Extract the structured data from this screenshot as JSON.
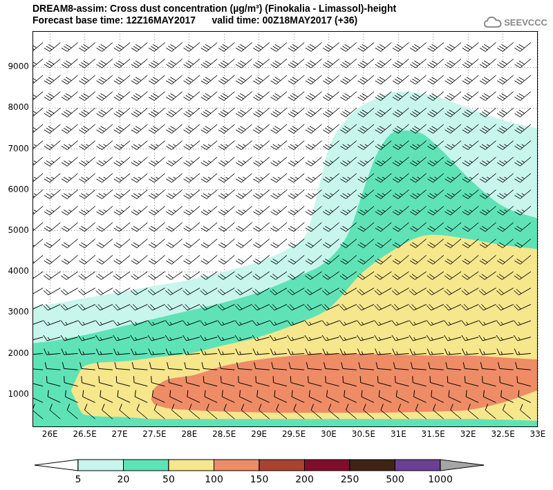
{
  "chart_data": {
    "type": "filled_contour",
    "title": "DREAM8-assim: Cross dust concentration (µg/m³) (Finokalia - Limassol)-height",
    "subtitle": "Forecast base time: 12Z16MAY2017      valid time: 00Z18MAY2017 (+36)",
    "logo": "SEEVCCC",
    "xlim": [
      25.75,
      33
    ],
    "xticks": [
      {
        "value": 26,
        "label": "26E"
      },
      {
        "value": 26.5,
        "label": "26.5E"
      },
      {
        "value": 27,
        "label": "27E"
      },
      {
        "value": 27.5,
        "label": "27.5E"
      },
      {
        "value": 28,
        "label": "28E"
      },
      {
        "value": 28.5,
        "label": "28.5E"
      },
      {
        "value": 29,
        "label": "29E"
      },
      {
        "value": 29.5,
        "label": "29.5E"
      },
      {
        "value": 30,
        "label": "30E"
      },
      {
        "value": 30.5,
        "label": "30.5E"
      },
      {
        "value": 31,
        "label": "31E"
      },
      {
        "value": 31.5,
        "label": "31.5E"
      },
      {
        "value": 32,
        "label": "32E"
      },
      {
        "value": 32.5,
        "label": "32.5E"
      },
      {
        "value": 33,
        "label": "33E"
      }
    ],
    "ylim": [
      200,
      9880
    ],
    "yticks": [
      1000,
      2000,
      3000,
      4000,
      5000,
      6000,
      7000,
      8000,
      9000
    ],
    "grid": true,
    "colorbar": {
      "levels": [
        5,
        20,
        50,
        100,
        150,
        200,
        250,
        500,
        1000
      ],
      "colors": [
        "#ffffff",
        "#c8f5ec",
        "#5fe3b6",
        "#f6e68c",
        "#ee8c66",
        "#a9432f",
        "#800d2d",
        "#3f2314",
        "#6b3f94",
        "#a6a6a6"
      ]
    },
    "contours": [
      {
        "level": 5,
        "x": [
          25.75,
          26,
          26.5,
          27,
          27.5,
          28,
          28.5,
          29,
          29.5,
          29.7,
          29.85,
          30,
          30.3,
          30.7,
          31,
          31.5,
          32,
          32.5,
          33
        ],
        "lower": [
          200,
          200,
          200,
          200,
          200,
          200,
          200,
          200,
          200,
          200,
          200,
          200,
          200,
          200,
          200,
          200,
          200,
          200,
          200
        ],
        "upper": [
          3150,
          3200,
          3350,
          3500,
          3650,
          3800,
          4000,
          4250,
          4650,
          5000,
          6000,
          7000,
          7800,
          8250,
          8400,
          8300,
          8000,
          7700,
          7500
        ]
      },
      {
        "level": 20,
        "x": [
          25.75,
          26,
          26.5,
          27,
          27.5,
          28,
          28.5,
          29,
          29.5,
          30,
          30.3,
          30.5,
          30.7,
          31,
          31.3,
          31.6,
          32,
          32.5,
          33
        ],
        "lower": [
          200,
          200,
          200,
          200,
          200,
          200,
          200,
          200,
          200,
          200,
          200,
          200,
          200,
          200,
          200,
          200,
          200,
          200,
          200
        ],
        "upper": [
          2250,
          2300,
          2450,
          2650,
          2850,
          3050,
          3250,
          3500,
          3850,
          4300,
          5000,
          6000,
          6900,
          7450,
          7400,
          7000,
          6300,
          5600,
          5300
        ]
      },
      {
        "level": 50,
        "x": [
          26.3,
          26.5,
          27,
          27.5,
          28,
          28.5,
          29,
          29.5,
          30,
          30.5,
          31,
          31.3,
          31.5,
          32,
          32.5,
          33
        ],
        "lower": [
          1100,
          500,
          450,
          400,
          400,
          400,
          400,
          400,
          400,
          400,
          400,
          400,
          400,
          400,
          380,
          350
        ],
        "upper": [
          1100,
          1700,
          1800,
          1900,
          2000,
          2200,
          2400,
          2700,
          3100,
          4000,
          4600,
          4850,
          4900,
          4800,
          4650,
          4550
        ]
      },
      {
        "level": 100,
        "x": [
          27.45,
          27.5,
          28,
          28.5,
          29,
          29.5,
          30,
          30.5,
          31,
          31.5,
          32,
          32.5,
          33
        ],
        "lower": [
          880,
          760,
          620,
          580,
          560,
          550,
          550,
          550,
          560,
          580,
          620,
          800,
          1100
        ],
        "upper": [
          880,
          1150,
          1450,
          1700,
          1850,
          1950,
          2000,
          1990,
          1970,
          1950,
          1950,
          1900,
          1850
        ]
      }
    ],
    "wind_barbs": {
      "x": [
        25.9,
        26.15,
        26.4,
        26.65,
        26.9,
        27.15,
        27.4,
        27.65,
        27.9,
        28.15,
        28.4,
        28.65,
        28.9,
        29.15,
        29.4,
        29.65,
        29.9,
        30.15,
        30.4,
        30.65,
        30.9,
        31.15,
        31.4,
        31.65,
        31.9,
        32.15,
        32.4,
        32.65,
        32.9
      ],
      "heights": [
        400,
        800,
        1200,
        1600,
        2000,
        2400,
        2800,
        3200,
        3600,
        4000,
        4400,
        4800,
        5200,
        5600,
        6000,
        6400,
        6800,
        7200,
        7600,
        8000,
        8400,
        8800,
        9200,
        9600
      ],
      "direction": [
        310,
        295,
        285,
        275,
        265,
        255,
        250,
        245,
        240,
        235,
        230,
        230,
        230,
        230,
        230,
        230,
        230,
        230,
        230,
        230,
        230,
        230,
        230,
        230
      ],
      "speed": [
        10,
        10,
        10,
        10,
        15,
        15,
        15,
        20,
        20,
        20,
        20,
        20,
        20,
        25,
        25,
        25,
        25,
        25,
        30,
        30,
        30,
        30,
        30,
        30
      ]
    }
  }
}
